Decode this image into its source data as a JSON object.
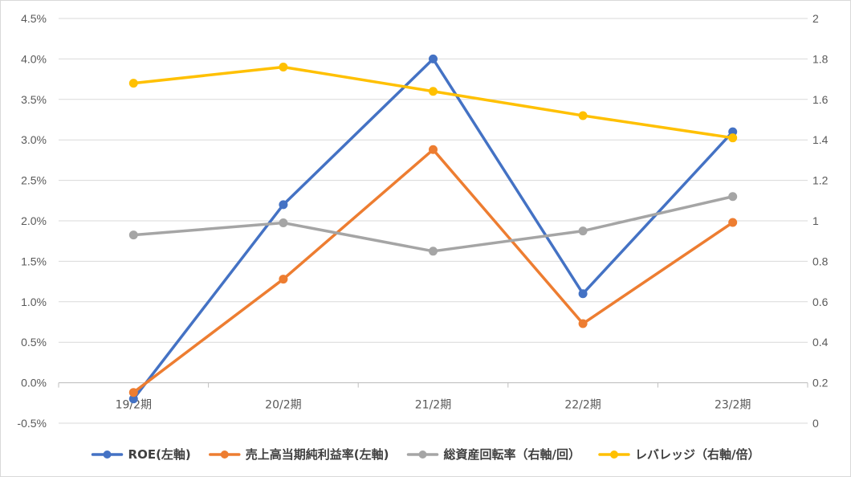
{
  "chart_data": {
    "type": "line",
    "categories": [
      "19/2期",
      "20/2期",
      "21/2期",
      "22/2期",
      "23/2期"
    ],
    "left_axis": {
      "min": -0.005,
      "max": 0.045,
      "step": 0.005,
      "tick_labels": [
        "-0.5%",
        "0.0%",
        "0.5%",
        "1.0%",
        "1.5%",
        "2.0%",
        "2.5%",
        "3.0%",
        "3.5%",
        "4.0%",
        "4.5%"
      ]
    },
    "right_axis": {
      "min": 0,
      "max": 2,
      "step": 0.2,
      "tick_labels": [
        "0",
        "0.2",
        "0.4",
        "0.6",
        "0.8",
        "1",
        "1.2",
        "1.4",
        "1.6",
        "1.8",
        "2"
      ]
    },
    "grid": true,
    "legend_position": "bottom",
    "series": [
      {
        "name": "ROE(左軸)",
        "axis": "left",
        "color": "#4472C4",
        "values": [
          -0.002,
          0.022,
          0.04,
          0.011,
          0.031
        ]
      },
      {
        "name": "売上高当期純利益率(左軸)",
        "axis": "left",
        "color": "#ED7D31",
        "values": [
          -0.0012,
          0.0128,
          0.0288,
          0.0073,
          0.0198
        ]
      },
      {
        "name": "総資産回転率（右軸/回）",
        "axis": "right",
        "color": "#A5A5A5",
        "values": [
          0.93,
          0.99,
          0.85,
          0.95,
          1.12
        ]
      },
      {
        "name": "レバレッジ（右軸/倍）",
        "axis": "right",
        "color": "#FFC000",
        "values": [
          1.68,
          1.76,
          1.64,
          1.52,
          1.41
        ]
      }
    ]
  }
}
